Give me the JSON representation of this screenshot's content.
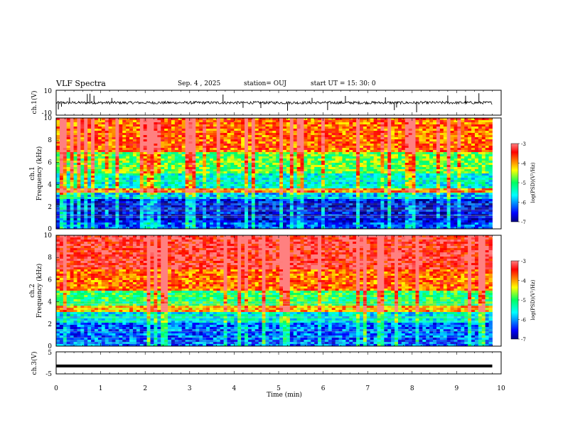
{
  "header": {
    "title": "VLF Spectra",
    "date": "Sep. 4 , 2025",
    "station": "station= OUJ",
    "start": "start  UT =  15: 30: 0"
  },
  "chart_data": [
    {
      "type": "line",
      "panel": "ch1_waveform",
      "ylabel": "ch.1(V)",
      "ylim": [
        -10,
        10
      ],
      "yticks": [
        "10",
        "-10"
      ],
      "xlim": [
        0,
        10
      ],
      "baseline": 0,
      "spikes_x": [
        0.05,
        0.12,
        0.3,
        0.7,
        0.76,
        0.85,
        1.25,
        3.75,
        4.2,
        4.6,
        5.2,
        5.75,
        6.1,
        6.5,
        7.4,
        7.6,
        7.65,
        8.1,
        8.8,
        9.2,
        9.5
      ]
    },
    {
      "type": "heatmap",
      "panel": "ch1_spectrogram",
      "ylabel": "ch.1",
      "ylabel2": "Frequency (kHz)",
      "xlim": [
        0,
        10
      ],
      "ylim": [
        0,
        10
      ],
      "yticks": [
        "0",
        "2",
        "4",
        "6",
        "8",
        "10"
      ],
      "data_extent_x_min": 9.8,
      "colorbar": {
        "label": "log(PSD)(V²/Hz)",
        "range": [
          -7,
          -3
        ],
        "ticks": [
          "-3",
          "-4",
          "-5",
          "-6",
          "-7"
        ]
      },
      "bands": [
        {
          "f": [
            0,
            0.5
          ],
          "level": -6.3
        },
        {
          "f": [
            0.5,
            2.6
          ],
          "level": -6.6
        },
        {
          "f": [
            2.6,
            3.2
          ],
          "level": -5.8
        },
        {
          "f": [
            3.2,
            3.6
          ],
          "level": -4.0
        },
        {
          "f": [
            3.6,
            5.0
          ],
          "level": -5.5
        },
        {
          "f": [
            5.0,
            7.0
          ],
          "level": -4.8
        },
        {
          "f": [
            7.0,
            10.0
          ],
          "level": -3.8
        }
      ]
    },
    {
      "type": "heatmap",
      "panel": "ch2_spectrogram",
      "ylabel": "ch.2",
      "ylabel2": "Frequency (kHz)",
      "xlim": [
        0,
        10
      ],
      "ylim": [
        0,
        10
      ],
      "yticks": [
        "0",
        "2",
        "4",
        "6",
        "8",
        "10"
      ],
      "data_extent_x_min": 9.8,
      "colorbar": {
        "label": "log(PSD)(V²/Hz)",
        "range": [
          -7,
          -3
        ],
        "ticks": [
          "-3",
          "-4",
          "-5",
          "-6",
          "-7"
        ]
      },
      "bands": [
        {
          "f": [
            0,
            2.2
          ],
          "level": -6.2
        },
        {
          "f": [
            2.2,
            3.0
          ],
          "level": -5.6
        },
        {
          "f": [
            3.0,
            3.6
          ],
          "level": -4.1
        },
        {
          "f": [
            3.6,
            5.0
          ],
          "level": -5.0
        },
        {
          "f": [
            5.0,
            7.0
          ],
          "level": -3.8
        },
        {
          "f": [
            7.0,
            10.0
          ],
          "level": -3.3
        }
      ]
    },
    {
      "type": "line",
      "panel": "ch3_waveform",
      "ylabel": "ch.3(V)",
      "ylim": [
        -5,
        5
      ],
      "yticks": [
        "5",
        "-5"
      ],
      "xlim": [
        0,
        10
      ],
      "xticks": [
        "0",
        "1",
        "2",
        "3",
        "4",
        "5",
        "6",
        "7",
        "8",
        "9",
        "10"
      ],
      "xlabel": "Time (min)",
      "constant_value": -1.4,
      "data_extent_x_min": 9.8
    }
  ]
}
